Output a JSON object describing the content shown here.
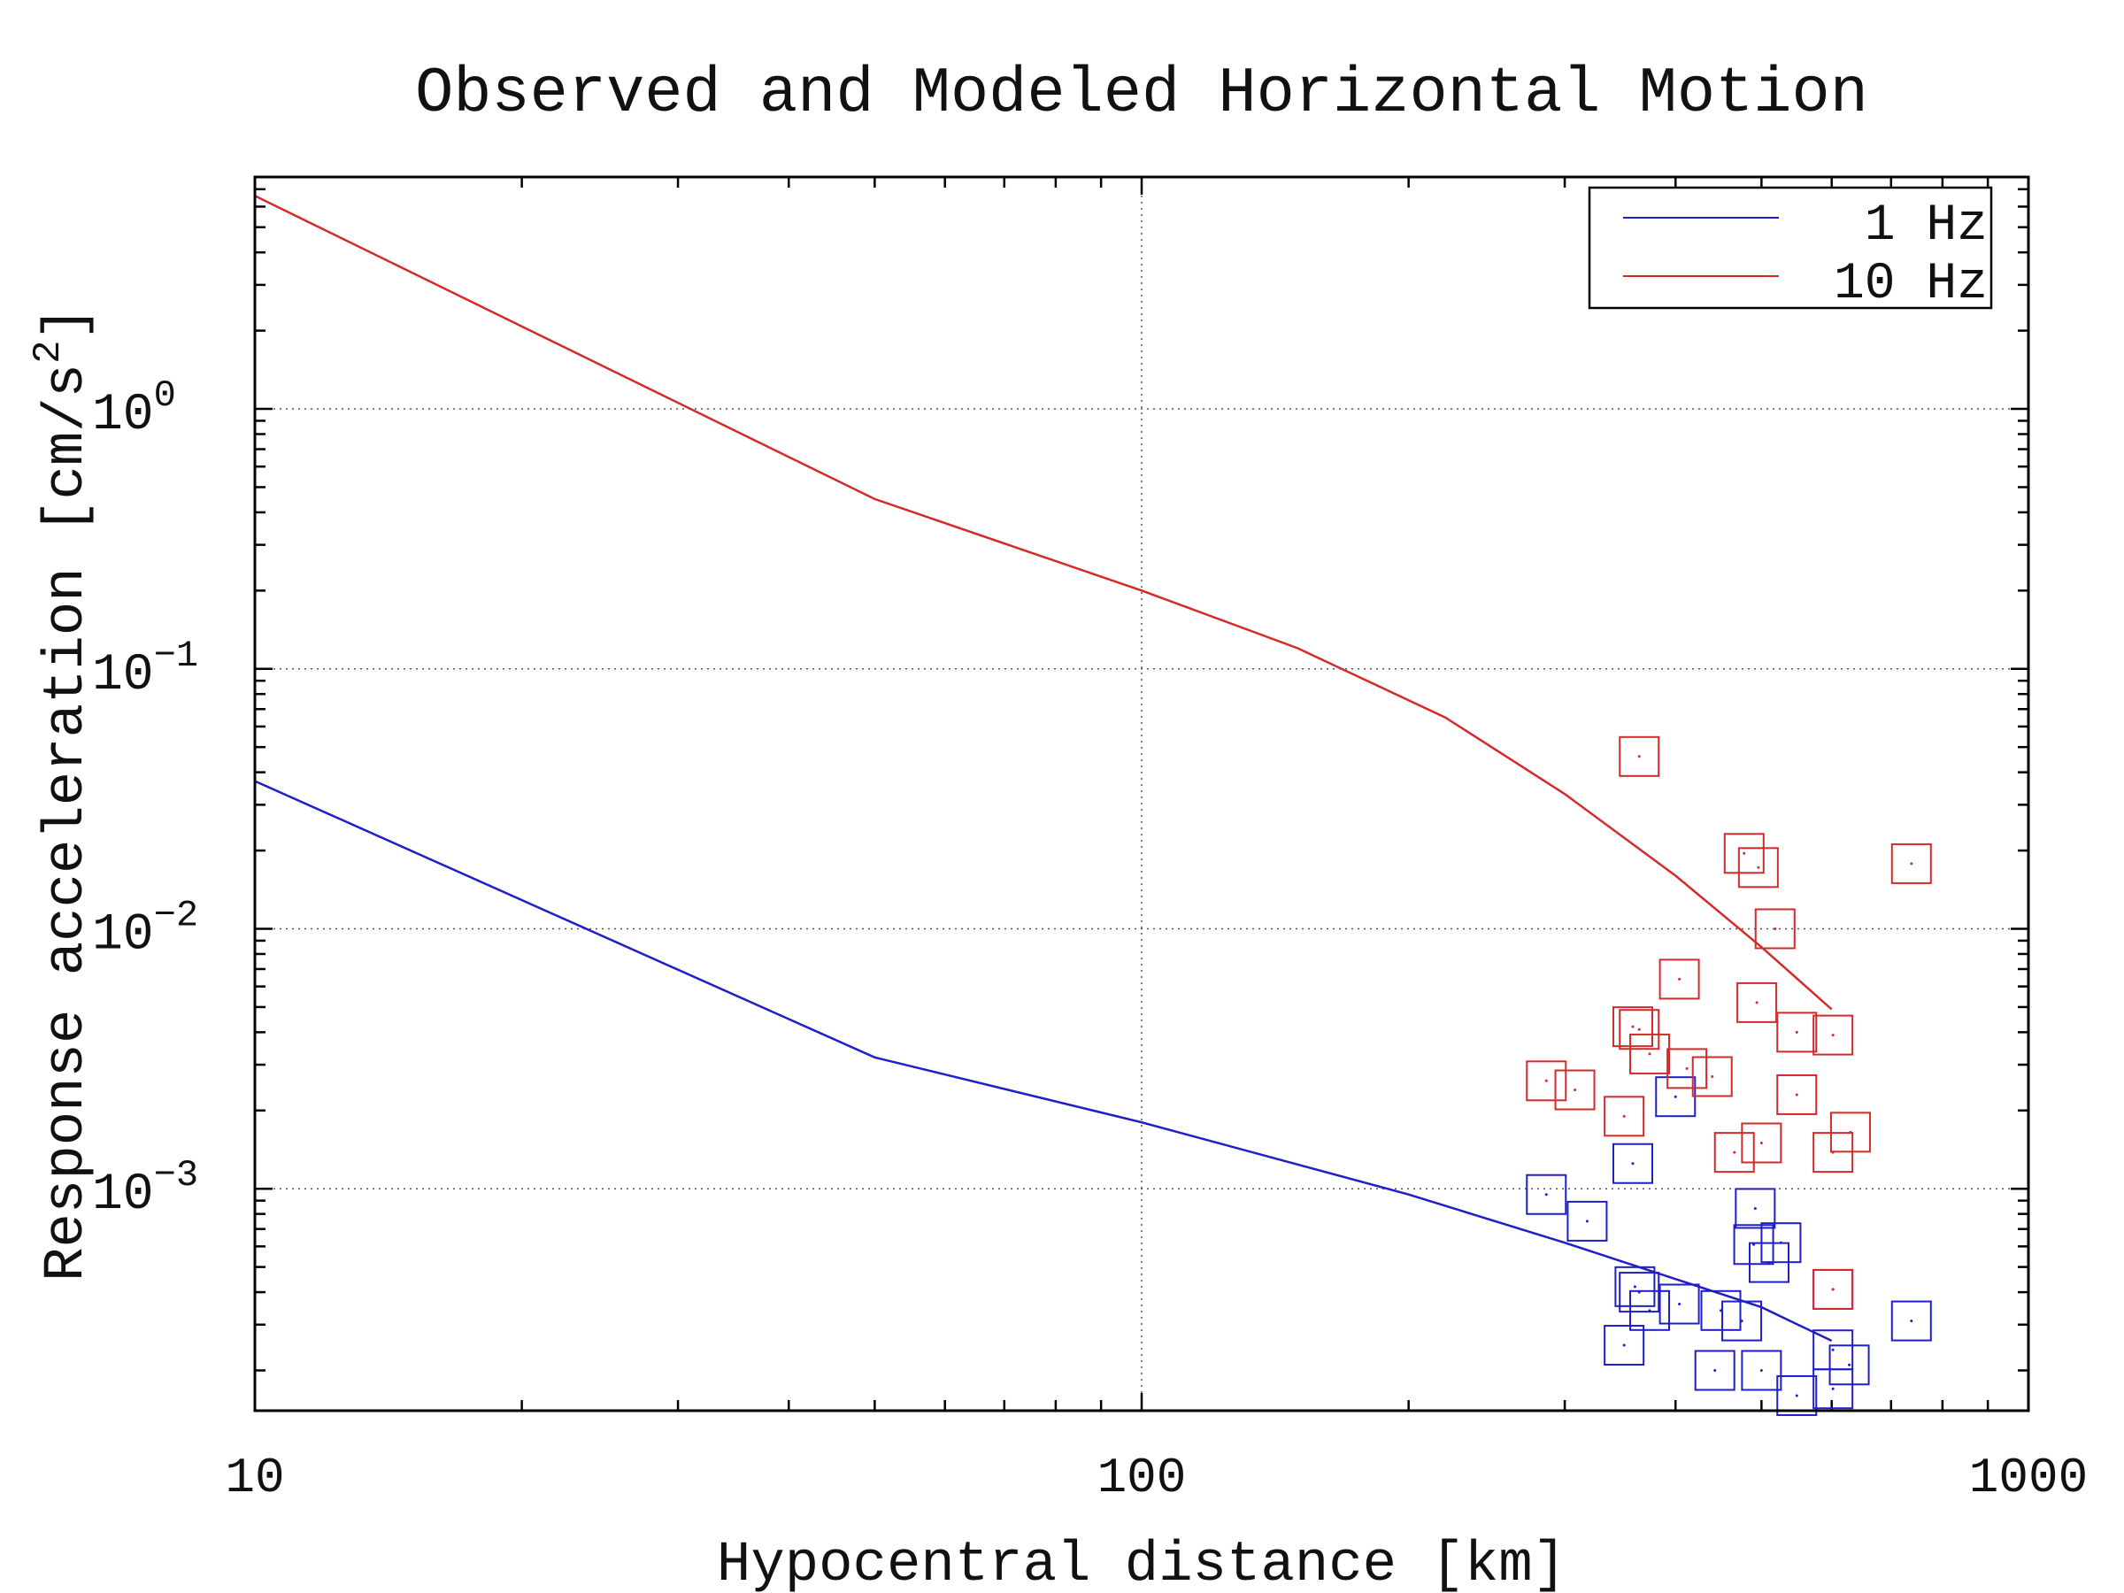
{
  "chart_data": {
    "type": "line",
    "title": "Observed and Modeled Horizontal Motion",
    "xlabel": "Hypocentral distance [km]",
    "ylabel_text": "Response acceleration [cm/s",
    "ylabel_sup": "2",
    "ylabel_close": "]",
    "x_scale": "log",
    "y_scale": "log",
    "xlim": [
      10,
      1000
    ],
    "ylim": [
      0.00014,
      7.8
    ],
    "x_ticks": [
      {
        "value": 10,
        "label": "10"
      },
      {
        "value": 100,
        "label": "100"
      },
      {
        "value": 1000,
        "label": "1000"
      }
    ],
    "y_ticks": [
      {
        "value": 1,
        "base": "10",
        "exp": "0"
      },
      {
        "value": 0.1,
        "base": "10",
        "exp": "−1"
      },
      {
        "value": 0.01,
        "base": "10",
        "exp": "−2"
      },
      {
        "value": 0.001,
        "base": "10",
        "exp": "−3"
      }
    ],
    "grid": true,
    "legend_position": "top-right",
    "colors": {
      "1 Hz": "#1f1fc8",
      "10 Hz": "#d42a2a"
    },
    "series": [
      {
        "name": "1 Hz",
        "kind": "model-line",
        "x": [
          10,
          50,
          100,
          200,
          300,
          500,
          600
        ],
        "y": [
          0.037,
          0.0032,
          0.0018,
          0.00095,
          0.00062,
          0.00035,
          0.00026
        ]
      },
      {
        "name": "10 Hz",
        "kind": "model-line",
        "x": [
          10,
          50,
          100,
          150,
          220,
          300,
          400,
          500,
          600
        ],
        "y": [
          6.6,
          0.45,
          0.2,
          0.12,
          0.065,
          0.033,
          0.016,
          0.0085,
          0.0049
        ]
      },
      {
        "name": "",
        "kind": "observed-1hz",
        "points": [
          [
            286,
            0.00095
          ],
          [
            318,
            0.00075
          ],
          [
            358,
            0.00125
          ],
          [
            400,
            0.00226
          ],
          [
            360,
            0.00042
          ],
          [
            364,
            0.0004
          ],
          [
            374,
            0.00034
          ],
          [
            404,
            0.00036
          ],
          [
            450,
            0.00034
          ],
          [
            475,
            0.00031
          ],
          [
            492,
            0.00084
          ],
          [
            490,
            0.00061
          ],
          [
            526,
            0.00062
          ],
          [
            510,
            0.00052
          ],
          [
            602,
            0.00041
          ],
          [
            602,
            0.00024
          ],
          [
            738,
            0.00031
          ],
          [
            350,
            0.00025
          ],
          [
            443,
            0.0002
          ],
          [
            500,
            0.0002
          ],
          [
            628,
            0.00021
          ],
          [
            548,
            0.00016
          ],
          [
            602,
            0.00017
          ]
        ]
      },
      {
        "name": "",
        "kind": "observed-10hz",
        "points": [
          [
            364,
            0.046
          ],
          [
            478,
            0.0195
          ],
          [
            496,
            0.0172
          ],
          [
            738,
            0.0178
          ],
          [
            518,
            0.01
          ],
          [
            404,
            0.0064
          ],
          [
            494,
            0.0052
          ],
          [
            358,
            0.0042
          ],
          [
            364,
            0.0041
          ],
          [
            548,
            0.004
          ],
          [
            602,
            0.0039
          ],
          [
            374,
            0.0033
          ],
          [
            412,
            0.0029
          ],
          [
            440,
            0.0027
          ],
          [
            286,
            0.0026
          ],
          [
            308,
            0.0024
          ],
          [
            548,
            0.0023
          ],
          [
            350,
            0.0019
          ],
          [
            500,
            0.0015
          ],
          [
            630,
            0.00165
          ],
          [
            466,
            0.00138
          ],
          [
            602,
            0.00138
          ],
          [
            602,
            0.00041
          ]
        ]
      }
    ],
    "legend": [
      {
        "label": "1 Hz",
        "color": "#1f1fc8"
      },
      {
        "label": "10 Hz",
        "color": "#d42a2a"
      }
    ]
  }
}
